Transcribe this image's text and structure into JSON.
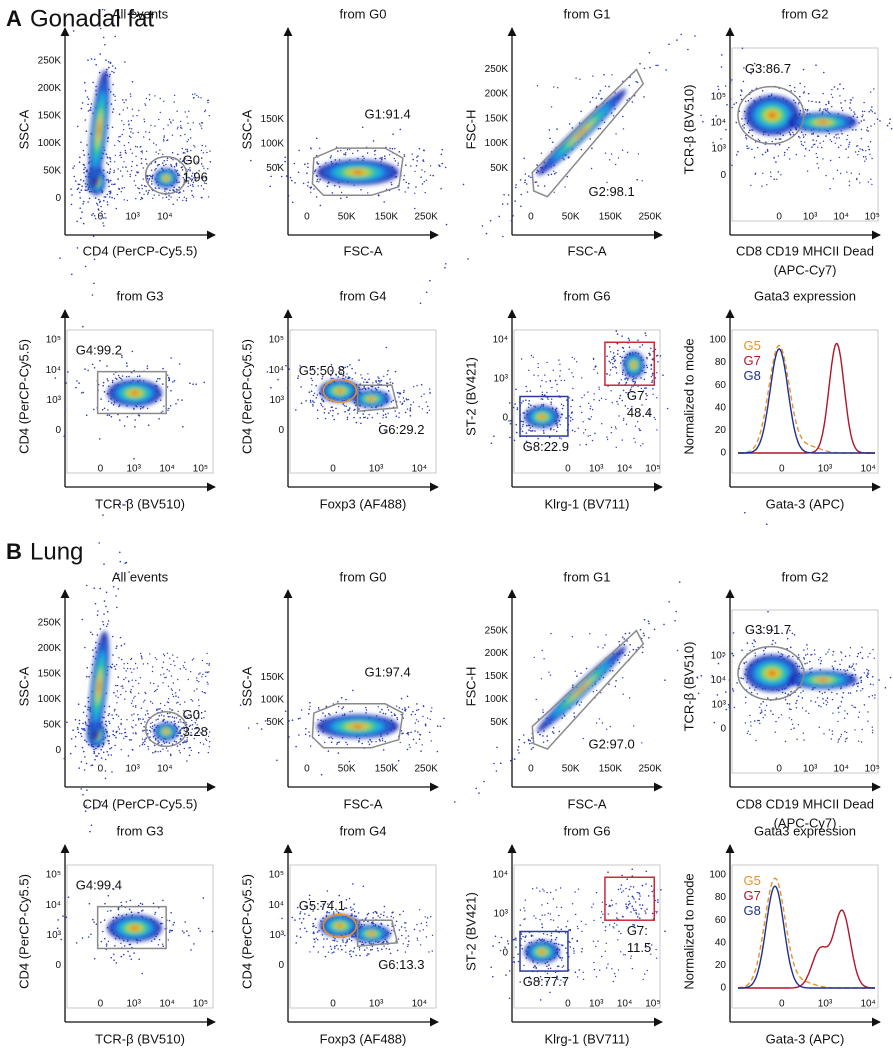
{
  "sections": [
    {
      "letter": "A",
      "name": "Gonadal fat",
      "panels": [
        {
          "title": "All events",
          "y_label": "SSC-A",
          "x_label": [
            "CD4 (PerCP-Cy5.5)"
          ],
          "y_ticks": [
            "0",
            "50K",
            "100K",
            "150K",
            "200K",
            "250K"
          ],
          "x_ticks": [
            "0",
            "10³",
            "10⁴"
          ],
          "gates": [
            [
              "G0:",
              "1.96"
            ]
          ]
        },
        {
          "title": "from G0",
          "y_label": "SSC-A",
          "x_label": [
            "FSC-A"
          ],
          "y_ticks": [
            "50K",
            "100K",
            "150K"
          ],
          "x_ticks": [
            "0",
            "50K",
            "150K",
            "250K"
          ],
          "gates": [
            [
              "G1:91.4"
            ]
          ]
        },
        {
          "title": "from G1",
          "y_label": "FSC-H",
          "x_label": [
            "FSC-A"
          ],
          "y_ticks": [
            "50K",
            "100K",
            "150K",
            "200K",
            "250K"
          ],
          "x_ticks": [
            "0",
            "50K",
            "150K",
            "250K"
          ],
          "gates": [
            [
              "G2:98.1"
            ]
          ]
        },
        {
          "title": "from G2",
          "y_label": "TCR-β (BV510)",
          "x_label": [
            "CD8 CD19 MHCII Dead",
            "(APC-Cy7)"
          ],
          "y_ticks": [
            "0",
            "10³",
            "10⁴",
            "10⁵"
          ],
          "x_ticks": [
            "0",
            "10³",
            "10⁴",
            "10⁵"
          ],
          "gates": [
            [
              "G3:86.7"
            ]
          ]
        },
        {
          "title": "from G3",
          "y_label": "CD4 (PerCP-Cy5.5)",
          "x_label": [
            "TCR-β (BV510)"
          ],
          "y_ticks": [
            "0",
            "10³",
            "10⁴",
            "10⁵"
          ],
          "x_ticks": [
            "0",
            "10³",
            "10⁴",
            "10⁵"
          ],
          "gates": [
            [
              "G4:99.2"
            ]
          ]
        },
        {
          "title": "from G4",
          "y_label": "CD4 (PerCP-Cy5.5)",
          "x_label": [
            "Foxp3 (AF488)"
          ],
          "y_ticks": [
            "0",
            "10³",
            "10⁴",
            "10⁵"
          ],
          "x_ticks": [
            "0",
            "10³",
            "10⁴"
          ],
          "gates": [
            [
              "G5:50.8"
            ],
            [
              "G6:29.2"
            ]
          ]
        },
        {
          "title": "from G6",
          "y_label": "ST-2 (BV421)",
          "x_label": [
            "Klrg-1 (BV711)"
          ],
          "y_ticks": [
            "0",
            "10³",
            "10⁴"
          ],
          "x_ticks": [
            "0",
            "10³",
            "10⁴",
            "10⁵"
          ],
          "gates": [
            [
              "G7:",
              "48.4"
            ],
            [
              "G8:22.9"
            ]
          ]
        },
        {
          "title": "Gata3 expression",
          "y_label": "Normalized to mode",
          "x_label": [
            "Gata-3 (APC)"
          ],
          "y_ticks": [
            "0",
            "20",
            "40",
            "60",
            "80",
            "100"
          ],
          "x_ticks": [
            "0",
            "10³",
            "10⁴"
          ],
          "gates": [],
          "legend": [
            "G5",
            "G7",
            "G8"
          ]
        }
      ]
    },
    {
      "letter": "B",
      "name": "Lung",
      "panels": [
        {
          "title": "All events",
          "y_label": "SSC-A",
          "x_label": [
            "CD4 (PerCP-Cy5.5)"
          ],
          "y_ticks": [
            "0",
            "50K",
            "100K",
            "150K",
            "200K",
            "250K"
          ],
          "x_ticks": [
            "0",
            "10³",
            "10⁴"
          ],
          "gates": [
            [
              "G0:",
              "3.28"
            ]
          ]
        },
        {
          "title": "from G0",
          "y_label": "SSC-A",
          "x_label": [
            "FSC-A"
          ],
          "y_ticks": [
            "50K",
            "100K",
            "150K"
          ],
          "x_ticks": [
            "0",
            "50K",
            "150K",
            "250K"
          ],
          "gates": [
            [
              "G1:97.4"
            ]
          ]
        },
        {
          "title": "from G1",
          "y_label": "FSC-H",
          "x_label": [
            "FSC-A"
          ],
          "y_ticks": [
            "50K",
            "100K",
            "150K",
            "200K",
            "250K"
          ],
          "x_ticks": [
            "0",
            "50K",
            "150K",
            "250K"
          ],
          "gates": [
            [
              "G2:97.0"
            ]
          ]
        },
        {
          "title": "from G2",
          "y_label": "TCR-β (BV510)",
          "x_label": [
            "CD8 CD19 MHCII Dead",
            "(APC-Cy7)"
          ],
          "y_ticks": [
            "0",
            "10³",
            "10⁴",
            "10⁵"
          ],
          "x_ticks": [
            "0",
            "10³",
            "10⁴",
            "10⁵"
          ],
          "gates": [
            [
              "G3:91.7"
            ]
          ]
        },
        {
          "title": "from G3",
          "y_label": "CD4 (PerCP-Cy5.5)",
          "x_label": [
            "TCR-β (BV510)"
          ],
          "y_ticks": [
            "0",
            "10³",
            "10⁴",
            "10⁵"
          ],
          "x_ticks": [
            "0",
            "10³",
            "10⁴",
            "10⁵"
          ],
          "gates": [
            [
              "G4:99.4"
            ]
          ]
        },
        {
          "title": "from G4",
          "y_label": "CD4 (PerCP-Cy5.5)",
          "x_label": [
            "Foxp3 (AF488)"
          ],
          "y_ticks": [
            "0",
            "10³",
            "10⁴",
            "10⁵"
          ],
          "x_ticks": [
            "0",
            "10³",
            "10⁴"
          ],
          "gates": [
            [
              "G5:74.1"
            ],
            [
              "G6:13.3"
            ]
          ]
        },
        {
          "title": "from G6",
          "y_label": "ST-2 (BV421)",
          "x_label": [
            "Klrg-1 (BV711)"
          ],
          "y_ticks": [
            "0",
            "10³",
            "10⁴"
          ],
          "x_ticks": [
            "0",
            "10³",
            "10⁴",
            "10⁵"
          ],
          "gates": [
            [
              "G7:",
              "11.5"
            ],
            [
              "G8:77.7"
            ]
          ]
        },
        {
          "title": "Gata3 expression",
          "y_label": "Normalized to mode",
          "x_label": [
            "Gata-3 (APC)"
          ],
          "y_ticks": [
            "0",
            "20",
            "40",
            "60",
            "80",
            "100"
          ],
          "x_ticks": [
            "0",
            "10³",
            "10⁴"
          ],
          "gates": [],
          "legend": [
            "G5",
            "G7",
            "G8"
          ]
        }
      ]
    }
  ]
}
